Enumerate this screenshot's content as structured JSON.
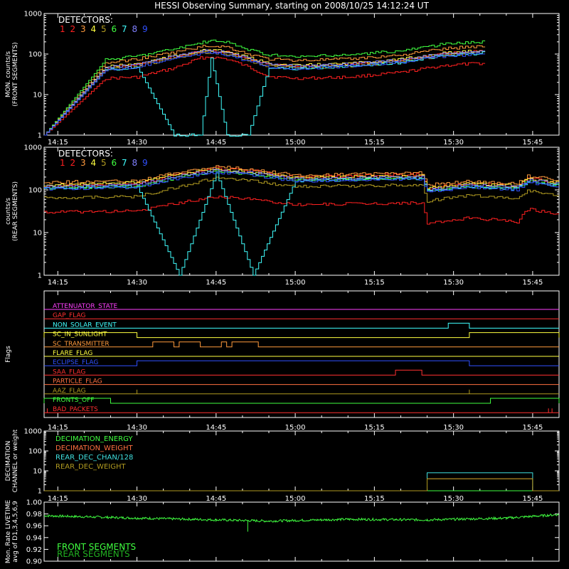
{
  "title": "HESSI Observing Summary, starting on 2008/10/25 14:12:24 UT",
  "colors": {
    "background": "#000000",
    "axes": "#ffffff",
    "detectors": [
      "#ff2020",
      "#ff2020",
      "#ff9a3c",
      "#ffff40",
      "#b09a20",
      "#40ff40",
      "#40ffff",
      "#8080ff",
      "#3050ff"
    ]
  },
  "time_axis": {
    "start": "14:12:24",
    "end": "15:50",
    "tick_labels": [
      "14:15",
      "14:30",
      "14:45",
      "15:00",
      "15:15",
      "15:30",
      "15:45"
    ]
  },
  "chart_data": [
    {
      "type": "line",
      "ylabel_lines": [
        "MON. counts/s",
        "(FRONT SEGMENTS)"
      ],
      "yscale": "log",
      "ylim": [
        1,
        1000
      ],
      "ytick_labels": [
        "1",
        "10",
        "100",
        "1000"
      ],
      "legend_title": "DETECTORS:",
      "legend_labels": [
        "1",
        "2",
        "3",
        "4",
        "5",
        "6",
        "7",
        "8",
        "9"
      ],
      "x": [
        "14:12:24",
        "14:24",
        "14:30",
        "14:37",
        "14:42",
        "14:44",
        "14:47",
        "14:51",
        "14:55",
        "15:00",
        "15:10",
        "15:20",
        "15:28",
        "15:36"
      ],
      "series": [
        {
          "values": [
            1,
            25,
            27,
            45,
            80,
            85,
            75,
            48,
            28,
            25,
            27,
            35,
            52,
            60
          ]
        },
        {
          "values": [
            1,
            45,
            55,
            85,
            115,
            120,
            110,
            75,
            55,
            50,
            55,
            70,
            100,
            120
          ]
        },
        {
          "values": [
            1,
            60,
            75,
            110,
            150,
            160,
            150,
            100,
            75,
            70,
            75,
            95,
            135,
            160
          ]
        },
        {
          "values": [
            1,
            48,
            58,
            90,
            120,
            125,
            115,
            80,
            58,
            52,
            58,
            74,
            105,
            125
          ]
        },
        {
          "values": [
            1,
            42,
            50,
            80,
            105,
            110,
            100,
            70,
            50,
            45,
            50,
            65,
            92,
            110
          ]
        },
        {
          "values": [
            1,
            72,
            90,
            135,
            190,
            210,
            195,
            130,
            95,
            85,
            95,
            120,
            175,
            205
          ]
        },
        {
          "values": [
            1,
            40,
            48,
            1,
            1,
            80,
            1,
            1,
            48,
            44,
            50,
            62,
            90,
            108
          ]
        },
        {
          "values": [
            1,
            46,
            56,
            86,
            115,
            122,
            112,
            77,
            56,
            50,
            56,
            72,
            102,
            120
          ]
        },
        {
          "values": [
            1,
            40,
            48,
            75,
            100,
            105,
            96,
            67,
            48,
            44,
            50,
            62,
            88,
            104
          ]
        }
      ]
    },
    {
      "type": "line",
      "ylabel_lines": [
        "counts/s",
        "(REAR SEGMENTS)"
      ],
      "yscale": "log",
      "ylim": [
        1,
        1000
      ],
      "ytick_labels": [
        "1",
        "10",
        "100",
        "1000"
      ],
      "legend_title": "DETECTORS:",
      "legend_labels": [
        "1",
        "2",
        "3",
        "4",
        "5",
        "6",
        "7",
        "8",
        "9"
      ],
      "x": [
        "14:12:24",
        "14:30",
        "14:38",
        "14:45",
        "14:52",
        "15:00",
        "15:24",
        "15:25",
        "15:33",
        "15:42",
        "15:44",
        "15:50"
      ],
      "series": [
        {
          "values": [
            30,
            32,
            50,
            70,
            60,
            45,
            50,
            16,
            22,
            18,
            35,
            28
          ]
        },
        {
          "values": [
            120,
            140,
            230,
            320,
            280,
            200,
            230,
            110,
            140,
            120,
            190,
            150
          ]
        },
        {
          "values": [
            150,
            165,
            260,
            350,
            300,
            220,
            250,
            130,
            160,
            140,
            210,
            170
          ]
        },
        {
          "values": [
            130,
            150,
            240,
            300,
            260,
            190,
            215,
            110,
            140,
            125,
            185,
            150
          ]
        },
        {
          "values": [
            65,
            70,
            120,
            190,
            160,
            120,
            130,
            55,
            75,
            62,
            95,
            75
          ]
        },
        {
          "values": [
            110,
            120,
            200,
            270,
            230,
            170,
            190,
            95,
            120,
            110,
            160,
            130
          ]
        },
        {
          "values": [
            110,
            120,
            1,
            250,
            1,
            165,
            185,
            95,
            120,
            105,
            155,
            125
          ]
        },
        {
          "values": [
            120,
            135,
            215,
            290,
            250,
            180,
            205,
            100,
            130,
            115,
            170,
            140
          ]
        },
        {
          "values": [
            105,
            115,
            190,
            260,
            220,
            160,
            180,
            90,
            115,
            100,
            150,
            120
          ]
        }
      ]
    },
    {
      "type": "line",
      "ylabel_lines": [
        "Flags"
      ],
      "series": [
        {
          "name": "ATTENUATOR_STATE",
          "color": "#ff40ff",
          "segments": [],
          "tick_marks": []
        },
        {
          "name": "GAP_FLAG",
          "color": "#ff3030",
          "segments": [],
          "tick_marks": []
        },
        {
          "name": "NON_SOLAR_EVENT",
          "color": "#40ffff",
          "segments": [
            [
              "15:29",
              "15:33"
            ]
          ],
          "tick_marks": []
        },
        {
          "name": "SC_IN_SUNLIGHT",
          "color": "#ffff40",
          "segments": [
            [
              "14:12:24",
              "14:30"
            ],
            [
              "15:33",
              "15:50"
            ]
          ],
          "tick_marks": []
        },
        {
          "name": "SC_TRANSMITTER",
          "color": "#ff9a3c",
          "segments": [
            [
              "14:33",
              "14:37"
            ],
            [
              "14:38",
              "14:42"
            ],
            [
              "14:46",
              "14:47"
            ],
            [
              "14:48",
              "14:53"
            ]
          ],
          "tick_marks": []
        },
        {
          "name": "FLARE_FLAG",
          "color": "#ffff40",
          "segments": [],
          "tick_marks": []
        },
        {
          "name": "ECLIPSE_FLAG",
          "color": "#3050ff",
          "segments": [
            [
              "14:30",
              "15:33"
            ]
          ],
          "tick_marks": []
        },
        {
          "name": "SAA_FLAG",
          "color": "#ff3030",
          "segments": [
            [
              "15:19",
              "15:24"
            ]
          ],
          "tick_marks": []
        },
        {
          "name": "PARTICLE_FLAG",
          "color": "#ff7040",
          "segments": [],
          "tick_marks": []
        },
        {
          "name": "AAZ_FLAG",
          "color": "#b09a20",
          "segments": [],
          "tick_marks": [
            "14:30",
            "15:33"
          ]
        },
        {
          "name": "FRONTS_OFF",
          "color": "#40ff40",
          "segments": [
            [
              "14:12:24",
              "14:25"
            ],
            [
              "15:37",
              "15:50"
            ]
          ],
          "tick_marks": []
        },
        {
          "name": "BAD_PACKETS",
          "color": "#ff3030",
          "segments": [],
          "tick_marks": [
            "14:13",
            "15:48",
            "15:48:40"
          ]
        }
      ]
    },
    {
      "type": "line",
      "ylabel_lines": [
        "DECIMATION",
        "CHANNEL or weight"
      ],
      "yscale": "log",
      "ylim": [
        1,
        1000
      ],
      "ytick_labels": [
        "1",
        "10",
        "100",
        "1000"
      ],
      "series": [
        {
          "name": "DECIMATION_ENERGY",
          "color": "#40ff40",
          "x": [
            "14:12:24",
            "15:50"
          ],
          "values": [
            1,
            1
          ]
        },
        {
          "name": "DECIMATION_WEIGHT",
          "color": "#ff7040",
          "x": [
            "14:12:24",
            "15:25",
            "15:25",
            "15:45",
            "15:45",
            "15:50"
          ],
          "values": [
            1,
            1,
            4,
            4,
            1,
            1
          ]
        },
        {
          "name": "REAR_DEC_CHAN/128",
          "color": "#40e0e0",
          "x": [
            "14:12:24",
            "15:25",
            "15:25",
            "15:45",
            "15:45",
            "15:50"
          ],
          "values": [
            1,
            1,
            8,
            8,
            1,
            1
          ]
        },
        {
          "name": "REAR_DEC_WEIGHT",
          "color": "#b09a20",
          "x": [
            "14:12:24",
            "15:25",
            "15:25",
            "15:45",
            "15:45",
            "15:50"
          ],
          "values": [
            1,
            1,
            4,
            4,
            1,
            1
          ]
        }
      ]
    },
    {
      "type": "line",
      "ylabel_lines": [
        "Mon. Rate LIVETIME",
        "avg of D1,3,4,5,6,9"
      ],
      "ylim": [
        0.9,
        1.0
      ],
      "ytick_labels": [
        "0.90",
        "0.92",
        "0.94",
        "0.96",
        "0.98",
        "1.00"
      ],
      "series": [
        {
          "name": "FRONT SEGMENTS",
          "color": "#40ff40",
          "x": [
            "14:12:24",
            "14:30",
            "14:45",
            "14:55",
            "15:10",
            "15:25",
            "15:40",
            "15:50"
          ],
          "values": [
            0.977,
            0.973,
            0.97,
            0.968,
            0.971,
            0.97,
            0.973,
            0.979
          ]
        },
        {
          "name": "REAR SEGMENTS",
          "color": "#20b020",
          "x": [],
          "values": []
        }
      ],
      "annotations": [
        {
          "x": "14:51",
          "value": 0.95
        }
      ]
    }
  ]
}
